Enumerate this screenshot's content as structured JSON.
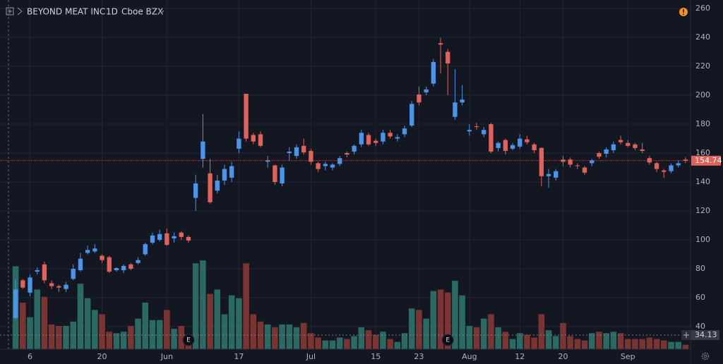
{
  "chart_data": {
    "type": "candlestick",
    "title": "BEYOND MEAT INC",
    "interval": "1D",
    "exchange": "Cboe BZX",
    "categories": [
      null,
      null,
      "6",
      null,
      null,
      null,
      null,
      null,
      null,
      null,
      null,
      null,
      "20",
      null,
      null,
      null,
      null,
      null,
      null,
      null,
      null,
      "Jun",
      null,
      null,
      null,
      null,
      null,
      null,
      null,
      null,
      null,
      "17",
      null,
      null,
      null,
      null,
      null,
      null,
      null,
      null,
      null,
      "Jul",
      null,
      null,
      null,
      null,
      null,
      null,
      null,
      null,
      "15",
      null,
      null,
      null,
      null,
      null,
      "23",
      null,
      null,
      null,
      null,
      null,
      null,
      "Aug",
      null,
      null,
      null,
      null,
      null,
      null,
      "12",
      null,
      null,
      null,
      null,
      null,
      "20",
      null,
      null,
      null,
      null,
      null,
      null,
      null,
      null,
      "Sep",
      null,
      null,
      null,
      null,
      null,
      null,
      null,
      null
    ],
    "open": [
      46,
      72,
      63.5,
      78,
      83,
      70,
      68,
      66,
      73,
      79,
      91,
      92,
      89,
      88,
      79,
      79,
      83,
      84,
      90,
      98,
      100,
      104.5,
      101,
      105,
      102,
      129,
      156,
      146,
      134,
      141,
      143,
      163,
      201,
      172.5,
      173,
      154,
      151.5,
      139,
      160,
      158,
      165,
      161.5,
      153,
      151,
      150,
      152.5,
      160,
      161,
      166,
      172.5,
      168.5,
      168,
      174,
      170,
      173,
      179,
      200.5,
      202,
      208,
      236,
      230,
      185,
      195,
      175,
      178.5,
      173,
      180,
      163.5,
      169,
      163,
      164.5,
      169.5,
      166,
      163.5,
      144,
      143,
      155.5,
      155.5,
      151.5,
      150,
      153,
      160,
      159.5,
      162,
      169,
      167,
      166,
      162.5,
      156.5,
      153,
      148,
      147.5,
      151.5,
      155.5
    ],
    "high": [
      72.5,
      73,
      76,
      81,
      85,
      72,
      69,
      71,
      83,
      91,
      96,
      97,
      90,
      89,
      81,
      83,
      84,
      88,
      98,
      105,
      107,
      108,
      105,
      106,
      103,
      145,
      187,
      156,
      145,
      152,
      154,
      175,
      201,
      174,
      175,
      158,
      152,
      152,
      164,
      166,
      170,
      163,
      154,
      154,
      153,
      158,
      161,
      166,
      176,
      174,
      170,
      176,
      176,
      173,
      179,
      196,
      206,
      206,
      225,
      239.7,
      232,
      218,
      207,
      180,
      181,
      178,
      181,
      168,
      170,
      167,
      173,
      172,
      167,
      164,
      149,
      149,
      158,
      157,
      153,
      151,
      156,
      161,
      164,
      168,
      172,
      169,
      167,
      167,
      158,
      154,
      149,
      153,
      155,
      157
    ],
    "low": [
      45,
      66,
      61,
      76,
      70,
      66,
      64,
      64,
      72,
      78,
      90,
      91,
      84,
      77,
      78,
      77,
      79,
      83,
      89,
      97,
      99,
      96,
      98,
      100,
      98,
      120,
      150,
      125,
      132,
      138,
      140,
      160,
      168,
      166,
      164,
      150,
      138,
      137,
      155,
      156,
      159,
      152,
      147,
      148,
      148,
      151,
      157,
      159,
      164,
      165,
      165,
      166,
      170,
      168,
      171,
      178,
      193,
      200,
      206,
      215,
      200,
      183,
      193,
      172,
      176,
      171,
      160,
      161,
      159,
      162,
      163,
      166,
      160,
      137,
      136,
      141,
      151,
      150,
      149,
      145,
      151,
      156,
      157,
      160,
      166,
      164,
      162,
      160,
      152,
      147,
      143,
      146,
      150,
      153
    ],
    "close": [
      65.75,
      67,
      74,
      79,
      72,
      68,
      67,
      69,
      80,
      87,
      93,
      94,
      86,
      78,
      80.5,
      82,
      80,
      86,
      97,
      103,
      104,
      96.5,
      102.5,
      102,
      99.5,
      139,
      168,
      126,
      141,
      149,
      151,
      170,
      170,
      168,
      165,
      155,
      140,
      150,
      161,
      164,
      160.5,
      154,
      149,
      152.5,
      152,
      156.5,
      159,
      165,
      174,
      166,
      167,
      174,
      171.5,
      171,
      177,
      194,
      195,
      204,
      223,
      235,
      222,
      195,
      197,
      176,
      178,
      176,
      161,
      167,
      161.5,
      165.5,
      170,
      167.5,
      162,
      144,
      145.5,
      147.5,
      154,
      152,
      151,
      146.5,
      155,
      157.5,
      162.5,
      166,
      167.5,
      165,
      163.5,
      161.5,
      153.5,
      149,
      147,
      151.5,
      153,
      154.74
    ],
    "volume": [
      57,
      32,
      22,
      41,
      36,
      17,
      16,
      16,
      19,
      45,
      35,
      27,
      24,
      12,
      11,
      12,
      16,
      21,
      32,
      20,
      20,
      27,
      14,
      16,
      10,
      59,
      61,
      38,
      41,
      24,
      37,
      35,
      59,
      24,
      19,
      17,
      15,
      17,
      17,
      15,
      18,
      11,
      8,
      6,
      6,
      8,
      7,
      9,
      15,
      13,
      10,
      12,
      7,
      5,
      11,
      28,
      27,
      21,
      40,
      41,
      39,
      47,
      37,
      16,
      15,
      21,
      24,
      15,
      12,
      7,
      11,
      10,
      8,
      24,
      13,
      9,
      18,
      9,
      7,
      6,
      11,
      12,
      11,
      12,
      11,
      7,
      7,
      7,
      8,
      7,
      6,
      5,
      5,
      3
    ],
    "volume_lim": [
      0,
      240
    ],
    "volume_ma": 34.13,
    "events": [
      {
        "label": "E",
        "at": 24
      },
      {
        "label": "E",
        "at": 60
      }
    ],
    "ylim": [
      24.39,
      265.85
    ],
    "yticks": [
      40,
      60,
      80,
      100,
      120,
      140,
      160,
      180,
      200,
      220,
      240,
      260
    ],
    "grid": true,
    "up_color": "#4a95ec",
    "down_color": "#e2625a",
    "volume_up_color": "#2b6a62",
    "volume_down_color": "#7a3432"
  }
}
